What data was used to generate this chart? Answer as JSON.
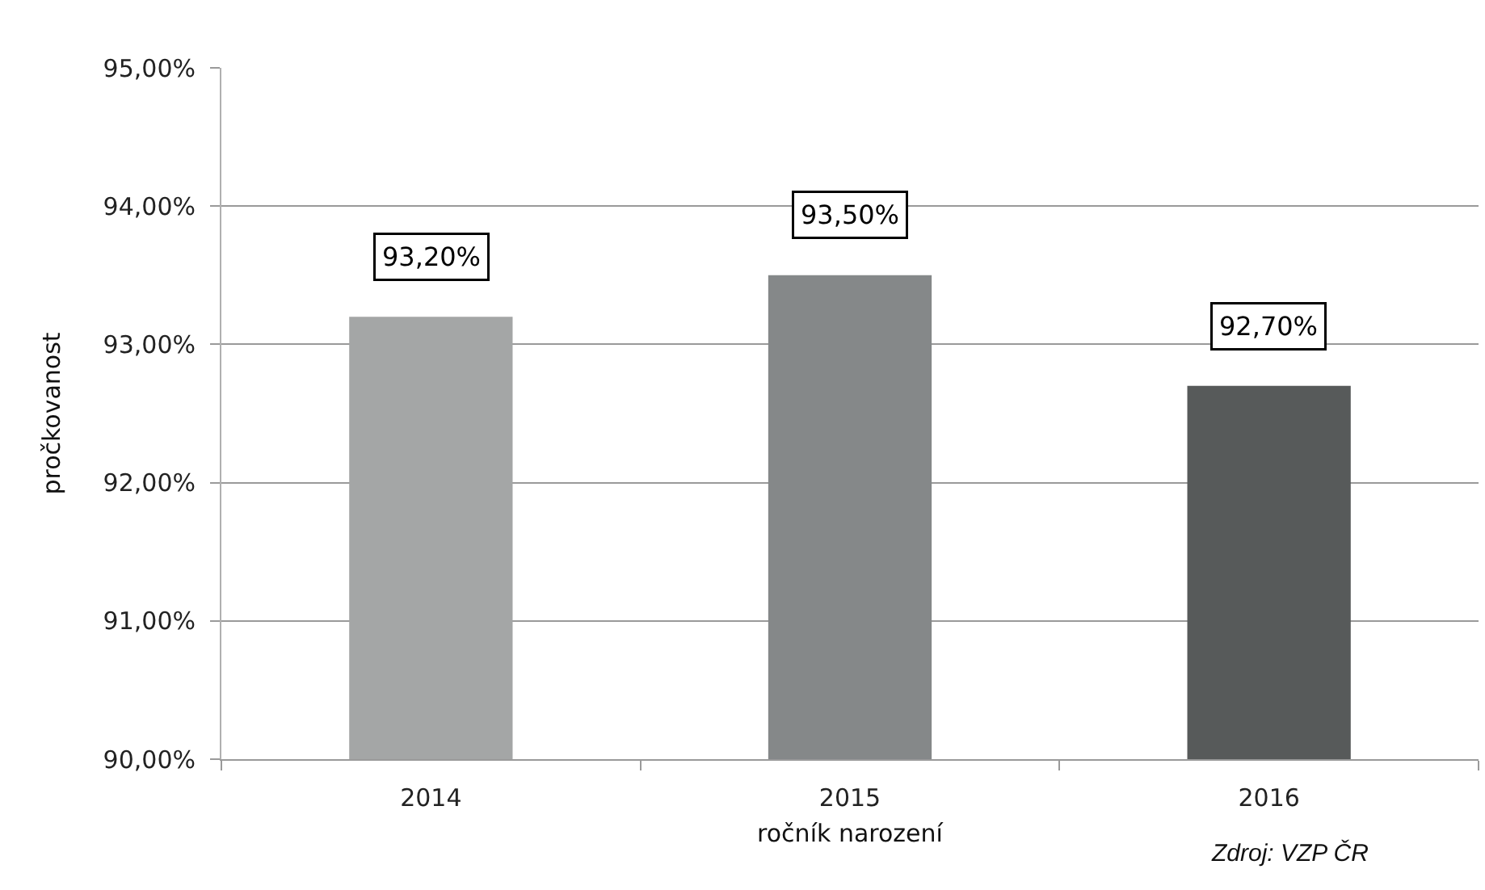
{
  "chart_data": {
    "type": "bar",
    "categories": [
      "2014",
      "2015",
      "2016"
    ],
    "values": [
      93.2,
      93.5,
      92.7
    ],
    "colors": [
      "#a4a6a6",
      "#858889",
      "#575a5a"
    ],
    "value_labels": [
      "93,20%",
      "93,50%",
      "92,70%"
    ],
    "ylim": [
      90,
      95
    ],
    "yticks": [
      {
        "value": 90,
        "label": "90,00%"
      },
      {
        "value": 91,
        "label": "91,00%"
      },
      {
        "value": 92,
        "label": "92,00%"
      },
      {
        "value": 93,
        "label": "93,00%"
      },
      {
        "value": 94,
        "label": "94,00%"
      },
      {
        "value": 95,
        "label": "95,00%"
      }
    ],
    "ylabel": "pročkovanost",
    "xlabel": "ročník narození",
    "annotations": [
      "Zdroj: VZP ČR"
    ],
    "grid": "y"
  }
}
